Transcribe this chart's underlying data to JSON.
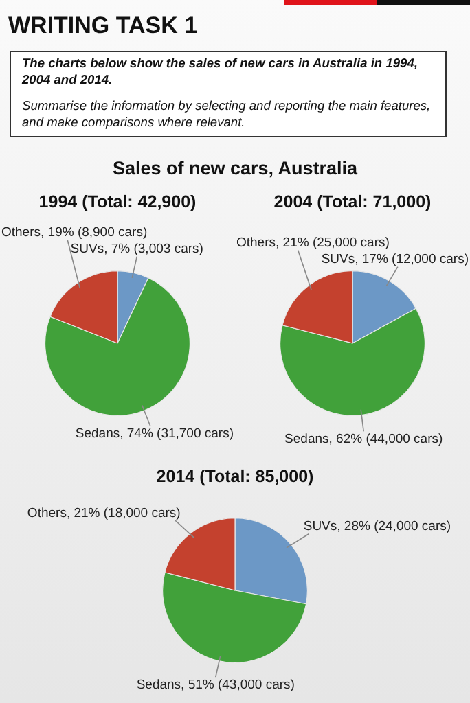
{
  "chart_data": [
    {
      "type": "other",
      "title": "WRITING TASK 1",
      "annotations": [
        "The charts below show the sales of new cars in Australia in 1994, 2004 and 2014.",
        "Summarise the information by selecting and reporting the main features, and make comparisons where relevant.",
        "Sales of new cars, Australia"
      ]
    },
    {
      "type": "pie",
      "title": "1994 (Total: 42,900)",
      "categories": [
        "SUVs",
        "Sedans",
        "Others"
      ],
      "values": [
        7,
        74,
        19
      ],
      "colors": [
        "#6c98c6",
        "#41a13a",
        "#c4412e"
      ],
      "value_labels": [
        "7% (3,003 cars)",
        "74% (31,700 cars)",
        "19% (8,900 cars)"
      ]
    },
    {
      "type": "pie",
      "title": "2004 (Total: 71,000)",
      "categories": [
        "SUVs",
        "Sedans",
        "Others"
      ],
      "values": [
        17,
        62,
        21
      ],
      "colors": [
        "#6c98c6",
        "#41a13a",
        "#c4412e"
      ],
      "value_labels": [
        "17% (12,000 cars)",
        "62% (44,000 cars)",
        "21% (25,000 cars)"
      ]
    },
    {
      "type": "pie",
      "title": "2014 (Total: 85,000)",
      "categories": [
        "SUVs",
        "Sedans",
        "Others"
      ],
      "values": [
        28,
        51,
        21
      ],
      "colors": [
        "#6c98c6",
        "#41a13a",
        "#c4412e"
      ],
      "value_labels": [
        "28% (24,000 cars)",
        "51% (43,000 cars)",
        "21% (18,000 cars)"
      ]
    }
  ]
}
